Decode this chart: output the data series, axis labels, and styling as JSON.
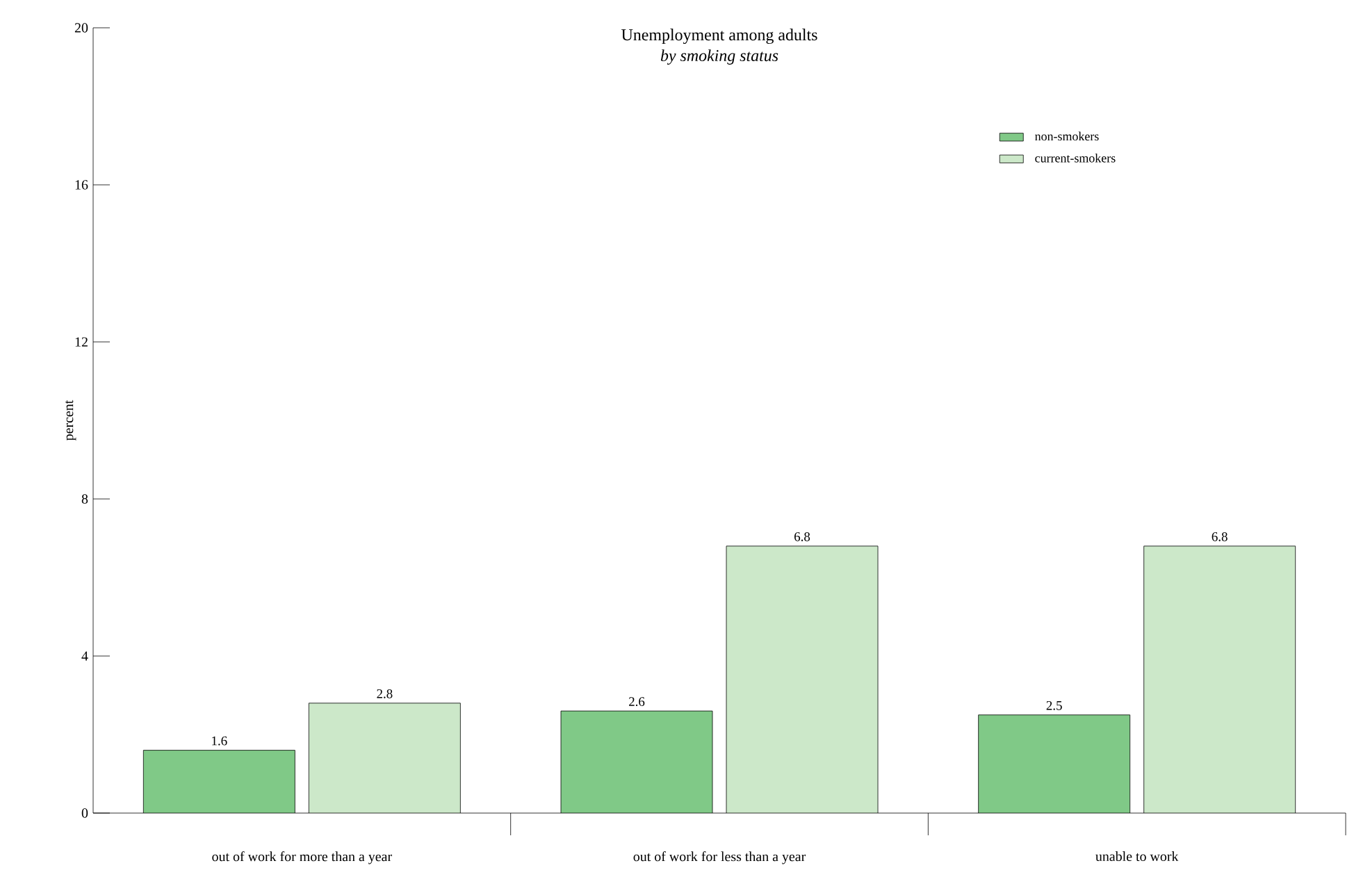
{
  "chart_data": {
    "type": "bar",
    "title": "Unemployment among adults",
    "subtitle": "*by smoking status*",
    "ylabel": "percent",
    "categories": [
      "out of work for more than a year",
      "out of work for less than a year",
      "unable to work"
    ],
    "series": [
      {
        "name": "non-smokers",
        "color": "#80c987",
        "values": [
          1.6,
          2.6,
          2.5
        ]
      },
      {
        "name": "current-smokers",
        "color": "#cce8c9",
        "values": [
          2.8,
          6.8,
          6.8
        ]
      }
    ],
    "ylim": [
      0,
      20
    ],
    "yticks": [
      0,
      4,
      8,
      12,
      16,
      20
    ],
    "data_labels": true,
    "legend": "top right",
    "grid": false
  }
}
